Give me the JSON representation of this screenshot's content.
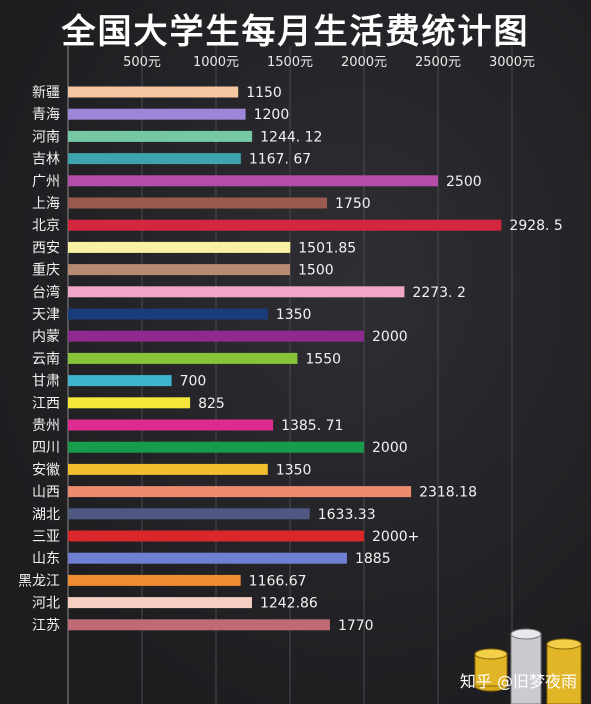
{
  "watermark": "知乎 @旧梦夜雨",
  "chart_data": {
    "type": "bar",
    "orientation": "horizontal",
    "title": "全国大学生每月生活费统计图",
    "x_ticks": [
      "500元",
      "1000元",
      "1500元",
      "2000元",
      "2500元",
      "3000元"
    ],
    "x_tick_values": [
      500,
      1000,
      1500,
      2000,
      2500,
      3000
    ],
    "xlim": [
      0,
      3000
    ],
    "grid": true,
    "bars": [
      {
        "category": "新疆",
        "value": 1150,
        "label": "1150",
        "color": "#f4c7a0"
      },
      {
        "category": "青海",
        "value": 1200,
        "label": "1200",
        "color": "#9d86d9"
      },
      {
        "category": "河南",
        "value": 1244.12,
        "label": "1244. 12",
        "color": "#74c9a4"
      },
      {
        "category": "吉林",
        "value": 1167.67,
        "label": "1167. 67",
        "color": "#3fa3ad"
      },
      {
        "category": "广州",
        "value": 2500,
        "label": "2500",
        "color": "#b54ca8"
      },
      {
        "category": "上海",
        "value": 1750,
        "label": "1750",
        "color": "#9a5a4e"
      },
      {
        "category": "北京",
        "value": 2928.5,
        "label": "2928. 5",
        "color": "#d3273f"
      },
      {
        "category": "西安",
        "value": 1501.85,
        "label": "1501.85",
        "color": "#f8f2a2"
      },
      {
        "category": "重庆",
        "value": 1500,
        "label": "1500",
        "color": "#b98a72"
      },
      {
        "category": "台湾",
        "value": 2273.2,
        "label": "2273. 2",
        "color": "#f2a7c9"
      },
      {
        "category": "天津",
        "value": 1350,
        "label": "1350",
        "color": "#193d7c"
      },
      {
        "category": "内蒙",
        "value": 2000,
        "label": "2000",
        "color": "#8e2a8f"
      },
      {
        "category": "云南",
        "value": 1550,
        "label": "1550",
        "color": "#86c43a"
      },
      {
        "category": "甘肃",
        "value": 700,
        "label": "700",
        "color": "#3fb5cf"
      },
      {
        "category": "江西",
        "value": 825,
        "label": "825",
        "color": "#f5e83a"
      },
      {
        "category": "贵州",
        "value": 1385.71,
        "label": "1385. 71",
        "color": "#e02b8e"
      },
      {
        "category": "四川",
        "value": 2000,
        "label": "2000",
        "color": "#189b4a"
      },
      {
        "category": "安徽",
        "value": 1350,
        "label": "1350",
        "color": "#f0be2e"
      },
      {
        "category": "山西",
        "value": 2318.18,
        "label": "2318.18",
        "color": "#ee8a6e"
      },
      {
        "category": "湖北",
        "value": 1633.33,
        "label": "1633.33",
        "color": "#4e5880"
      },
      {
        "category": "三亚",
        "value": 2000,
        "label": "2000+",
        "color": "#d8282a"
      },
      {
        "category": "山东",
        "value": 1885,
        "label": "1885",
        "color": "#6f7fd2"
      },
      {
        "category": "黑龙江",
        "value": 1166.67,
        "label": "1166.67",
        "color": "#f08b33"
      },
      {
        "category": "河北",
        "value": 1242.86,
        "label": "1242.86",
        "color": "#f6cfc2"
      },
      {
        "category": "江苏",
        "value": 1770,
        "label": "1770",
        "color": "#c06a75"
      }
    ]
  }
}
